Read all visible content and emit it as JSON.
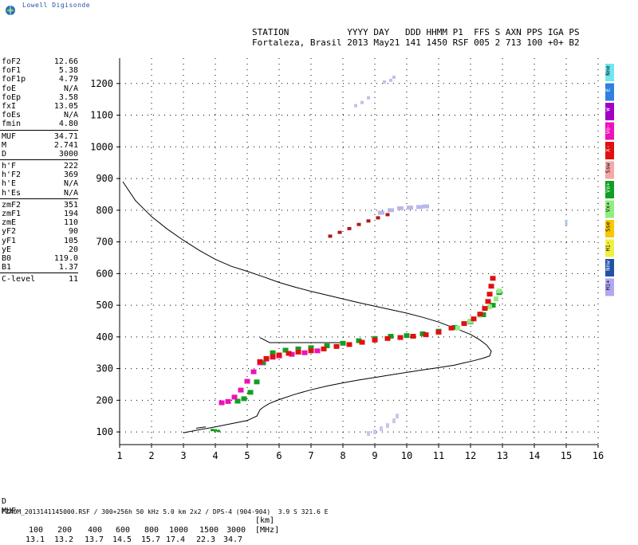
{
  "logo": {
    "text": "Lowell Digisonde"
  },
  "header": {
    "line1": "STATION           YYYY DAY   DDD HHMM P1  FFS S AXN PPS IGA PS",
    "line2": "Fortaleza, Brasil 2013 May21 141 1450 RSF 005 2 713 100 +0+ B2"
  },
  "params": [
    {
      "label": "foF2",
      "value": "12.66"
    },
    {
      "label": "foF1",
      "value": "5.38"
    },
    {
      "label": "foF1p",
      "value": "4.79"
    },
    {
      "label": "foE",
      "value": "N/A"
    },
    {
      "label": "foEp",
      "value": "3.58"
    },
    {
      "label": "fxI",
      "value": "13.05"
    },
    {
      "label": "foEs",
      "value": "N/A"
    },
    {
      "label": "fmin",
      "value": "4.80"
    },
    {
      "label": "MUF",
      "value": "34.71"
    },
    {
      "label": "M",
      "value": "2.741"
    },
    {
      "label": "D",
      "value": "3000"
    },
    {
      "label": "h'F",
      "value": "222"
    },
    {
      "label": "h'F2",
      "value": "369"
    },
    {
      "label": "h'E",
      "value": "N/A"
    },
    {
      "label": "h'Es",
      "value": "N/A"
    },
    {
      "label": "zmF2",
      "value": "351"
    },
    {
      "label": "zmF1",
      "value": "194"
    },
    {
      "label": "zmE",
      "value": "110"
    },
    {
      "label": "yF2",
      "value": "90"
    },
    {
      "label": "yF1",
      "value": "105"
    },
    {
      "label": "yE",
      "value": "20"
    },
    {
      "label": "B0",
      "value": "119.0"
    },
    {
      "label": "B1",
      "value": "1.37"
    },
    {
      "label": "C-level",
      "value": "11"
    }
  ],
  "legend": [
    {
      "label": "Nne",
      "color": "#6fe8f0"
    },
    {
      "label": "E",
      "color": "#2f80e0"
    },
    {
      "label": "W",
      "color": "#a000c8"
    },
    {
      "label": "Vo-",
      "color": "#ee10b8"
    },
    {
      "label": "X-",
      "color": "#e01010"
    },
    {
      "label": "Ssw",
      "color": "#f4a8a8"
    },
    {
      "label": "Vo+",
      "color": "#10a020"
    },
    {
      "label": "Vx+",
      "color": "#90ee80"
    },
    {
      "label": "Sse",
      "color": "#f8c800"
    },
    {
      "label": "Hi-",
      "color": "#f0f040"
    },
    {
      "label": "Nnw",
      "color": "#2050a8"
    },
    {
      "label": "Hi+",
      "color": "#b0a8f0"
    }
  ],
  "bottom": {
    "d_label": "D",
    "d_values": [
      "100",
      "200",
      "400",
      "600",
      "800",
      "1000",
      "1500",
      "3000"
    ],
    "d_unit": "[km]",
    "muf_label": "MUF",
    "muf_values": [
      "13.1",
      "13.2",
      "13.7",
      "14.5",
      "15.7",
      "17.4",
      "22.3",
      "34.7"
    ],
    "muf_unit": "[MHz]"
  },
  "footer": "FZA0M_2013141145000.RSF / 300+256h 50 kHz 5.0 km 2x2 / DPS-4 (904-904)  3.9 S 321.6 E",
  "chart_data": {
    "type": "scatter",
    "x_ticks": [
      1,
      2,
      3,
      4,
      5,
      6,
      7,
      8,
      9,
      10,
      11,
      12,
      13,
      14,
      15,
      16
    ],
    "y_ticks": [
      100,
      200,
      300,
      400,
      500,
      600,
      700,
      800,
      900,
      1000,
      1100,
      1200
    ],
    "xlim": [
      1,
      16
    ],
    "ylim": [
      60,
      1280
    ],
    "grid": true,
    "profile_curve": {
      "x": [
        1.1,
        1.5,
        2.0,
        2.5,
        3.0,
        3.5,
        4.0,
        4.5,
        5.0,
        5.5,
        6.0,
        6.5,
        7.0,
        7.5,
        8.0,
        8.5,
        9.0,
        9.5,
        10.0,
        10.5,
        11.0,
        11.5,
        12.0,
        12.3,
        12.5,
        12.65,
        12.6,
        12.4,
        12.1,
        11.8,
        11.5,
        11.0,
        10.5,
        10.0,
        9.5,
        9.0,
        8.5,
        8.0,
        7.5,
        7.0,
        6.5,
        6.0,
        5.7,
        5.5,
        5.4,
        5.3,
        5.0,
        4.5,
        4.0,
        3.5,
        3.0
      ],
      "y": [
        890,
        830,
        780,
        740,
        705,
        673,
        645,
        623,
        607,
        590,
        572,
        557,
        544,
        532,
        520,
        508,
        497,
        486,
        475,
        462,
        447,
        428,
        408,
        390,
        375,
        355,
        340,
        333,
        325,
        318,
        311,
        303,
        296,
        288,
        280,
        272,
        264,
        255,
        245,
        233,
        219,
        202,
        190,
        178,
        170,
        150,
        136,
        126,
        116,
        107,
        97
      ]
    },
    "trace_F_red_X": {
      "x": [
        5.4,
        5.6,
        5.8,
        6.0,
        6.3,
        6.6,
        7.0,
        7.4,
        7.8,
        8.2,
        8.6,
        9.0,
        9.4,
        9.8,
        10.2,
        10.6,
        11.0,
        11.4,
        11.8,
        12.1,
        12.3,
        12.45,
        12.55,
        12.6,
        12.65,
        12.7
      ],
      "y": [
        322,
        332,
        338,
        343,
        348,
        352,
        356,
        362,
        370,
        376,
        383,
        390,
        395,
        398,
        402,
        407,
        415,
        428,
        442,
        457,
        472,
        490,
        512,
        535,
        560,
        585
      ]
    },
    "trace_F_magenta_O": {
      "x": [
        4.2,
        4.4,
        4.6,
        4.8,
        5.0,
        5.2,
        5.4,
        5.6,
        5.8,
        6.0,
        6.4,
        6.8,
        7.2
      ],
      "y": [
        192,
        196,
        210,
        232,
        260,
        290,
        318,
        330,
        336,
        340,
        345,
        350,
        356
      ]
    },
    "trace_F_green_O": {
      "x": [
        4.7,
        4.9,
        5.1,
        5.3,
        5.5,
        5.8,
        6.2,
        6.6,
        7.0,
        7.5,
        8.0,
        8.5,
        9.0,
        9.5,
        10.0,
        10.5,
        11.0,
        11.5,
        12.0,
        12.4,
        12.7,
        12.9
      ],
      "y": [
        197,
        205,
        225,
        258,
        318,
        350,
        358,
        362,
        366,
        372,
        380,
        388,
        395,
        402,
        404,
        410,
        418,
        430,
        448,
        470,
        500,
        540
      ]
    },
    "trace_F_lightgreen_X": {
      "x": [
        11.6,
        12.0,
        12.3,
        12.6,
        12.8,
        12.9
      ],
      "y": [
        428,
        450,
        468,
        495,
        520,
        545
      ]
    },
    "trace_multiple_red": {
      "x": [
        7.6,
        7.9,
        8.2,
        8.5,
        8.8,
        9.1,
        9.4
      ],
      "y": [
        718,
        730,
        742,
        755,
        766,
        776,
        786
      ]
    },
    "trace_multiple_lightblue": {
      "x": [
        9.2,
        9.5,
        9.8,
        10.1,
        10.4,
        10.6
      ],
      "y": [
        792,
        800,
        806,
        808,
        810,
        812
      ]
    },
    "trace_upper_faint": {
      "x": [
        8.4,
        8.6,
        8.8,
        9.3,
        9.5,
        9.6
      ],
      "y": [
        1130,
        1140,
        1155,
        1205,
        1210,
        1220
      ]
    },
    "trace_low_faint": {
      "x": [
        8.8,
        9.0,
        9.2,
        9.4,
        9.6,
        9.7
      ],
      "y": [
        95,
        100,
        110,
        120,
        135,
        150
      ]
    },
    "trace_E_green": {
      "x": [
        3.9,
        4.0,
        4.1
      ],
      "y": [
        106,
        105,
        103
      ]
    }
  }
}
